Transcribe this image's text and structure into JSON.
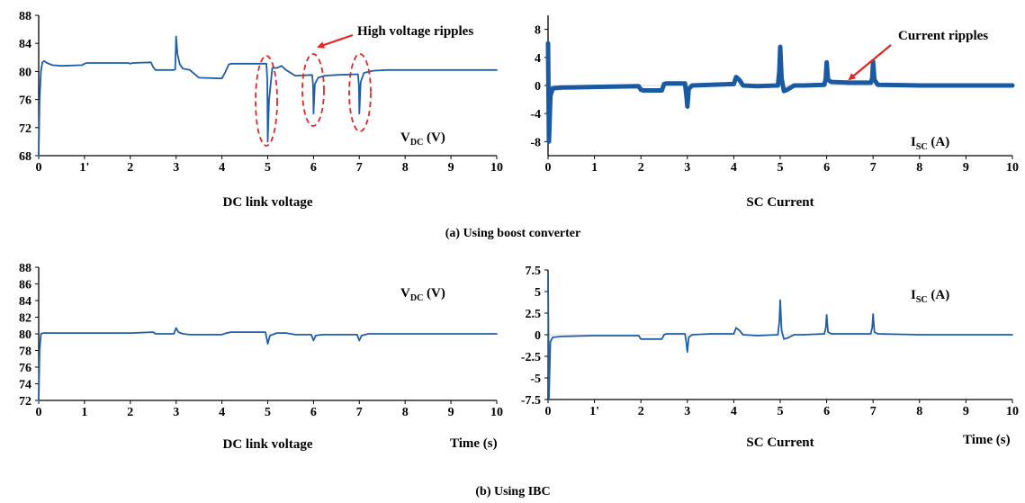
{
  "colors": {
    "signal": "#1f5ea8",
    "signal_thick": "#1a5aa3",
    "annotation": "#e32626",
    "axis": "#000000"
  },
  "captions": {
    "a": "(a) Using boost converter",
    "b": "(b) Using IBC"
  },
  "chart_data": [
    {
      "id": "a-vdc",
      "type": "line",
      "xlabel": "DC link voltage",
      "ylabel": "",
      "xlim": [
        0,
        10
      ],
      "ylim": [
        68,
        88
      ],
      "grid": false,
      "xticks": [
        "0",
        "1'",
        "2",
        "3",
        "4",
        "5",
        "6",
        "7",
        "8",
        "9",
        "10"
      ],
      "yticks": [
        "68",
        "72",
        "76",
        "80",
        "84",
        "88"
      ],
      "signal_label": {
        "main": "V",
        "sub": "DC",
        "unit": " (V)"
      },
      "annotation": "High voltage ripples",
      "series": [
        {
          "style": "thin",
          "x": [
            0,
            0.02,
            0.05,
            0.08,
            0.12,
            0.18,
            0.3,
            0.5,
            0.95,
            1.0,
            1.05,
            1.95,
            2.0,
            2.05,
            2.45,
            2.5,
            2.55,
            2.95,
            2.98,
            3.0,
            3.03,
            3.08,
            3.15,
            3.3,
            3.5,
            4.0,
            4.08,
            4.15,
            4.2,
            4.5,
            4.97,
            4.99,
            5.0,
            5.03,
            5.1,
            5.2,
            5.3,
            5.4,
            5.6,
            5.97,
            5.99,
            6.0,
            6.03,
            6.1,
            6.25,
            6.5,
            6.97,
            6.99,
            7.0,
            7.03,
            7.1,
            7.3,
            7.6,
            8.0,
            9.0,
            10.0
          ],
          "y": [
            68,
            76,
            80,
            81.3,
            81.5,
            81.2,
            80.9,
            80.8,
            80.9,
            81.1,
            81.2,
            81.2,
            81.1,
            81.2,
            81.3,
            80.6,
            80.2,
            80.2,
            80.3,
            85,
            82.5,
            81,
            80.4,
            80.2,
            79.1,
            79,
            80,
            81,
            81.1,
            81.1,
            81.1,
            79,
            70,
            76,
            80.5,
            80.5,
            80.8,
            80.2,
            79.4,
            79.5,
            78,
            74,
            78.2,
            79.1,
            79.4,
            79.5,
            79.6,
            78,
            74,
            78.5,
            79.8,
            80.1,
            80.2,
            80.2,
            80.2,
            80.2
          ]
        }
      ]
    },
    {
      "id": "a-isc",
      "type": "line",
      "xlabel": "SC Current",
      "ylabel": "",
      "xlim": [
        0,
        10
      ],
      "ylim": [
        -10,
        10
      ],
      "grid": false,
      "xticks": [
        "0",
        "1",
        "2",
        "3",
        "4",
        "5",
        "6",
        "7",
        "8",
        "9",
        "10"
      ],
      "yticks": [
        "-8",
        "-4",
        "0",
        "4",
        "8"
      ],
      "signal_label": {
        "main": "I",
        "sub": "SC",
        "unit": " (A)"
      },
      "annotation": "Current ripples",
      "series": [
        {
          "style": "thick",
          "x": [
            0,
            0.02,
            0.05,
            0.1,
            0.3,
            1.0,
            1.95,
            2.0,
            2.05,
            2.45,
            2.5,
            2.55,
            2.95,
            2.98,
            3.0,
            3.03,
            3.1,
            3.5,
            4.0,
            4.05,
            4.12,
            4.2,
            4.5,
            4.95,
            4.98,
            5.0,
            5.03,
            5.08,
            5.15,
            5.3,
            5.5,
            5.95,
            5.98,
            6.0,
            6.03,
            6.1,
            6.5,
            6.95,
            6.98,
            7.0,
            7.03,
            7.1,
            8.0,
            9.0,
            10.0
          ],
          "y": [
            6,
            -8,
            -1.5,
            -0.4,
            -0.3,
            -0.2,
            -0.1,
            -0.6,
            -0.7,
            -0.7,
            0.2,
            0.3,
            0.3,
            -1.5,
            -3,
            -0.5,
            0,
            0.1,
            0.2,
            1.2,
            0.8,
            0,
            -0.1,
            0,
            2,
            5.5,
            1,
            -0.8,
            -0.6,
            0,
            0,
            0.1,
            1,
            3.3,
            0.8,
            0.5,
            0.4,
            0.4,
            1,
            3.4,
            0.8,
            0.1,
            0,
            0,
            0
          ]
        }
      ]
    },
    {
      "id": "b-vdc",
      "type": "line",
      "xlabel": "DC link voltage",
      "ylabel": "",
      "xlim": [
        0,
        10
      ],
      "ylim": [
        72,
        88
      ],
      "grid": false,
      "xticks": [
        "0",
        "1",
        "2",
        "3",
        "4",
        "5",
        "6",
        "7",
        "8",
        "9",
        "10"
      ],
      "yticks": [
        "72",
        "74",
        "76",
        "78",
        "80",
        "82",
        "84",
        "86",
        "88"
      ],
      "signal_label": {
        "main": "V",
        "sub": "DC",
        "unit": " (V)"
      },
      "time_label": "Time (s)",
      "series": [
        {
          "style": "thin",
          "x": [
            0,
            0.02,
            0.05,
            0.1,
            0.2,
            1.0,
            2.0,
            2.5,
            2.55,
            2.95,
            3.0,
            3.05,
            3.15,
            3.3,
            4.0,
            4.1,
            4.2,
            4.95,
            5.0,
            5.05,
            5.2,
            5.4,
            5.6,
            5.95,
            6.0,
            6.05,
            6.2,
            6.95,
            7.0,
            7.05,
            7.2,
            8.0,
            9.0,
            10.0
          ],
          "y": [
            72,
            78,
            80,
            80.1,
            80.1,
            80.1,
            80.1,
            80.2,
            80,
            80,
            80.7,
            80.2,
            80,
            79.9,
            79.9,
            80.1,
            80.2,
            80.2,
            78.8,
            79.8,
            80.1,
            80.1,
            79.9,
            79.9,
            79.2,
            79.8,
            79.9,
            79.9,
            79.2,
            79.8,
            80,
            80,
            80,
            80
          ]
        }
      ]
    },
    {
      "id": "b-isc",
      "type": "line",
      "xlabel": "SC Current",
      "ylabel": "",
      "xlim": [
        0,
        10
      ],
      "ylim": [
        -7.5,
        7.5
      ],
      "grid": false,
      "xticks": [
        "0",
        "1'",
        "2",
        "3",
        "4",
        "5",
        "6",
        "7",
        "8",
        "9",
        "10"
      ],
      "yticks": [
        "-7.5",
        "-5",
        "-2.5",
        "0",
        "2.5",
        "5",
        "7.5"
      ],
      "signal_label": {
        "main": "I",
        "sub": "SC",
        "unit": " (A)"
      },
      "time_label": "Time (s)",
      "series": [
        {
          "style": "thin",
          "x": [
            0,
            0.02,
            0.05,
            0.1,
            0.3,
            1.0,
            1.95,
            2.0,
            2.05,
            2.45,
            2.5,
            2.55,
            2.95,
            2.98,
            3.0,
            3.03,
            3.1,
            3.5,
            4.0,
            4.05,
            4.12,
            4.2,
            4.5,
            4.95,
            4.98,
            5.0,
            5.03,
            5.08,
            5.15,
            5.3,
            5.5,
            5.95,
            5.98,
            6.0,
            6.03,
            6.1,
            6.5,
            6.95,
            6.98,
            7.0,
            7.03,
            7.1,
            8.0,
            9.0,
            10.0
          ],
          "y": [
            7,
            -7.5,
            -0.8,
            -0.3,
            -0.2,
            -0.1,
            -0.1,
            -0.5,
            -0.5,
            -0.5,
            0,
            0.1,
            0.1,
            -1,
            -2,
            -0.3,
            0,
            0.1,
            0.1,
            0.8,
            0.5,
            0,
            -0.1,
            0,
            1.5,
            4,
            0.5,
            -0.5,
            -0.4,
            0,
            0,
            0.1,
            0.8,
            2.3,
            0.3,
            0.1,
            0.1,
            0.1,
            0.8,
            2.4,
            0.3,
            0.1,
            0,
            0,
            0
          ]
        }
      ]
    }
  ]
}
